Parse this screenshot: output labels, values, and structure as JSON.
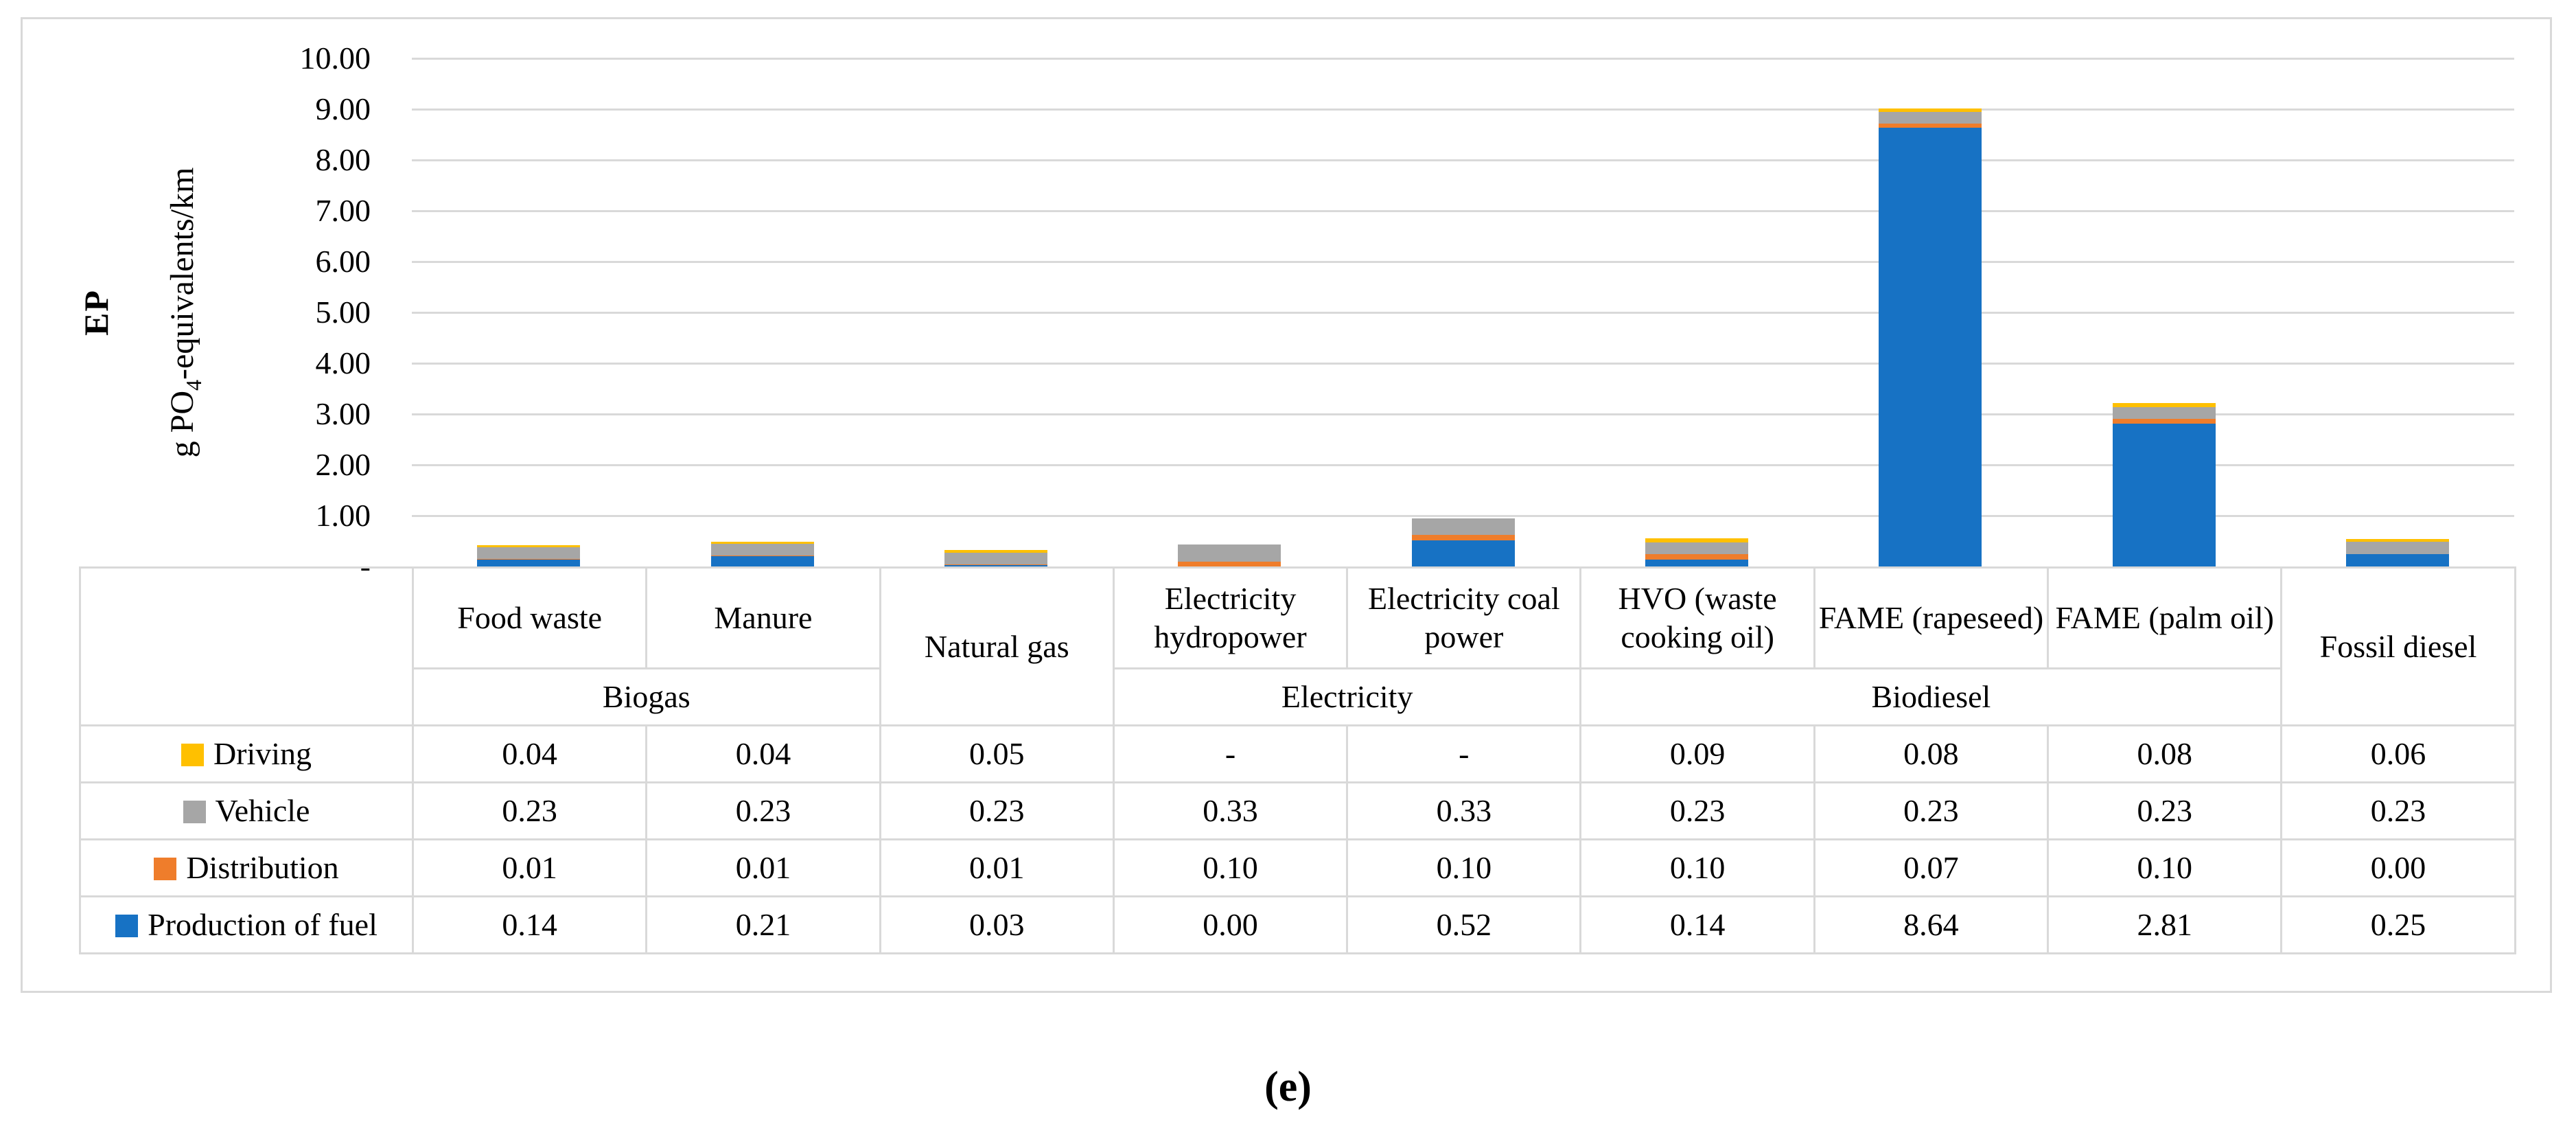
{
  "figure": {
    "caption": "(e)",
    "row_label": "EP",
    "y_axis_title": {
      "pre": "g PO",
      "sub": "4",
      "post": "-equivalents/km"
    }
  },
  "colors": {
    "grid": "#d9d9d9",
    "driving": "#FFC000",
    "vehicle": "#A6A6A6",
    "distribution": "#EF7D2B",
    "production": "#1772C4"
  },
  "chart_data": {
    "type": "bar",
    "stacked": true,
    "ylabel": "g PO4-equivalents/km",
    "ylim": [
      0,
      10
    ],
    "ytick_step": 1,
    "ytick_labels_top_to_bottom": [
      "10.00",
      "9.00",
      "8.00",
      "7.00",
      "6.00",
      "5.00",
      "4.00",
      "3.00",
      "2.00",
      "1.00",
      "-"
    ],
    "grid": true,
    "legend_position": "table-left",
    "categories": [
      "Food waste",
      "Manure",
      "Natural gas",
      "Electricity hydropower",
      "Electricity coal power",
      "HVO (waste cooking oil)",
      "FAME (rapeseed)",
      "FAME (palm oil)",
      "Fossil diesel"
    ],
    "groups": [
      {
        "label": "Biogas",
        "span": 2
      },
      {
        "label": "Natural gas",
        "span": 1,
        "merged": true
      },
      {
        "label": "Electricity",
        "span": 2
      },
      {
        "label": "Biodiesel",
        "span": 3
      },
      {
        "label": "Fossil diesel",
        "span": 1,
        "merged": true
      }
    ],
    "series": [
      {
        "name": "Driving",
        "color": "#FFC000",
        "values": [
          "0.04",
          "0.04",
          "0.05",
          "-",
          "-",
          "0.09",
          "0.08",
          "0.08",
          "0.06"
        ]
      },
      {
        "name": "Vehicle",
        "color": "#A6A6A6",
        "values": [
          "0.23",
          "0.23",
          "0.23",
          "0.33",
          "0.33",
          "0.23",
          "0.23",
          "0.23",
          "0.23"
        ]
      },
      {
        "name": "Distribution",
        "color": "#EF7D2B",
        "values": [
          "0.01",
          "0.01",
          "0.01",
          "0.10",
          "0.10",
          "0.10",
          "0.07",
          "0.10",
          "0.00"
        ]
      },
      {
        "name": "Production of fuel",
        "color": "#1772C4",
        "values": [
          "0.14",
          "0.21",
          "0.03",
          "0.00",
          "0.52",
          "0.14",
          "8.64",
          "2.81",
          "0.25"
        ]
      }
    ],
    "stack_order_bottom_to_top": [
      3,
      2,
      1,
      0
    ]
  }
}
